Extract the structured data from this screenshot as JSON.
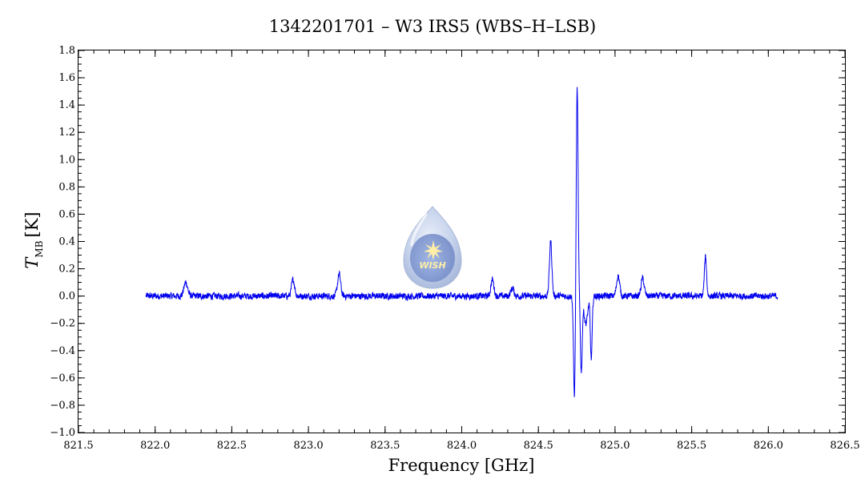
{
  "chart_data": {
    "type": "line",
    "title": "1342201701 – W3 IRS5 (WBS–H–LSB)",
    "xlabel": "Frequency [GHz]",
    "ylabel_main": "T",
    "ylabel_sub": "MB",
    "ylabel_unit": "[K]",
    "xlim": [
      821.5,
      826.5
    ],
    "ylim": [
      -1.0,
      1.8
    ],
    "x_ticks": [
      "821.5",
      "822.0",
      "822.5",
      "823.0",
      "823.5",
      "824.0",
      "824.5",
      "825.0",
      "825.5",
      "826.0",
      "826.5"
    ],
    "y_ticks": [
      "−1.0",
      "−0.8",
      "−0.6",
      "−0.4",
      "−0.2",
      "0.0",
      "0.2",
      "0.4",
      "0.6",
      "0.8",
      "1.0",
      "1.2",
      "1.4",
      "1.6",
      "1.8"
    ],
    "grid": false,
    "series": [
      {
        "color": "#0000ee",
        "x_range": [
          821.94,
          826.06
        ],
        "noise_amplitude": 0.025,
        "features": [
          {
            "x": 822.2,
            "y": 0.1,
            "width": 0.012
          },
          {
            "x": 822.9,
            "y": 0.12,
            "width": 0.01
          },
          {
            "x": 823.2,
            "y": 0.16,
            "width": 0.01
          },
          {
            "x": 824.2,
            "y": 0.12,
            "width": 0.01
          },
          {
            "x": 824.33,
            "y": 0.06,
            "width": 0.01
          },
          {
            "x": 824.58,
            "y": 0.4,
            "width": 0.008
          },
          {
            "x": 824.735,
            "y": -0.74,
            "width": 0.006
          },
          {
            "x": 824.753,
            "y": 1.53,
            "width": 0.006
          },
          {
            "x": 824.78,
            "y": -0.55,
            "width": 0.006
          },
          {
            "x": 824.81,
            "y": -0.2,
            "width": 0.012
          },
          {
            "x": 824.845,
            "y": -0.46,
            "width": 0.006
          },
          {
            "x": 825.02,
            "y": 0.15,
            "width": 0.01
          },
          {
            "x": 825.18,
            "y": 0.13,
            "width": 0.01
          },
          {
            "x": 825.59,
            "y": 0.29,
            "width": 0.007
          }
        ]
      }
    ],
    "logo_text": "WISH"
  }
}
